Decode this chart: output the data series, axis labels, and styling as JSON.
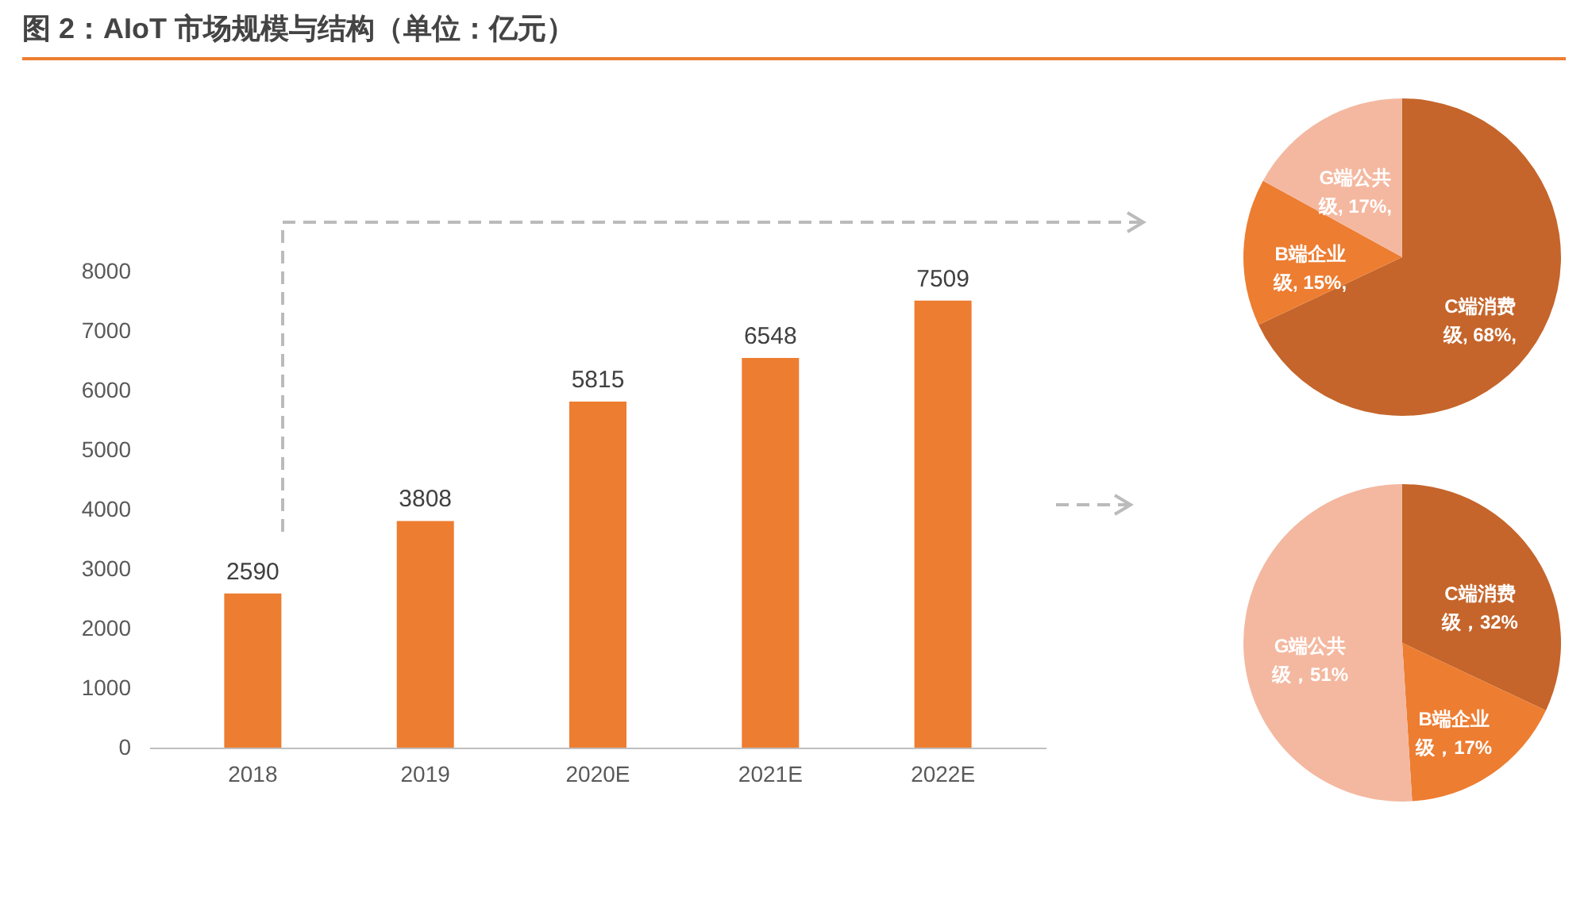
{
  "chart_data": [
    {
      "type": "bar",
      "title": "图 2：AIoT 市场规模与结构（单位：亿元）",
      "categories": [
        "2018",
        "2019",
        "2020E",
        "2021E",
        "2022E"
      ],
      "values": [
        2590,
        3808,
        5815,
        6548,
        7509
      ],
      "color": "#ed7d31",
      "ylim": [
        0,
        8000
      ],
      "yticks": [
        0,
        1000,
        2000,
        3000,
        4000,
        5000,
        6000,
        7000,
        8000
      ],
      "data_labels": true
    },
    {
      "type": "pie",
      "categories": [
        "C端消费级",
        "B端企业级",
        "G端公共级"
      ],
      "values": [
        68,
        15,
        17
      ],
      "colors": [
        "#c5652b",
        "#ed7d31",
        "#f4b8a0"
      ],
      "value_labels": [
        ", 68%,",
        ", 15%,",
        ", 17%,"
      ]
    },
    {
      "type": "pie",
      "categories": [
        "C端消费级",
        "B端企业级",
        "G端公共级"
      ],
      "values": [
        32,
        17,
        51
      ],
      "colors": [
        "#c5652b",
        "#ed7d31",
        "#f4b8a0"
      ],
      "value_labels": [
        "，32%",
        "，17%",
        "，51%"
      ]
    }
  ]
}
